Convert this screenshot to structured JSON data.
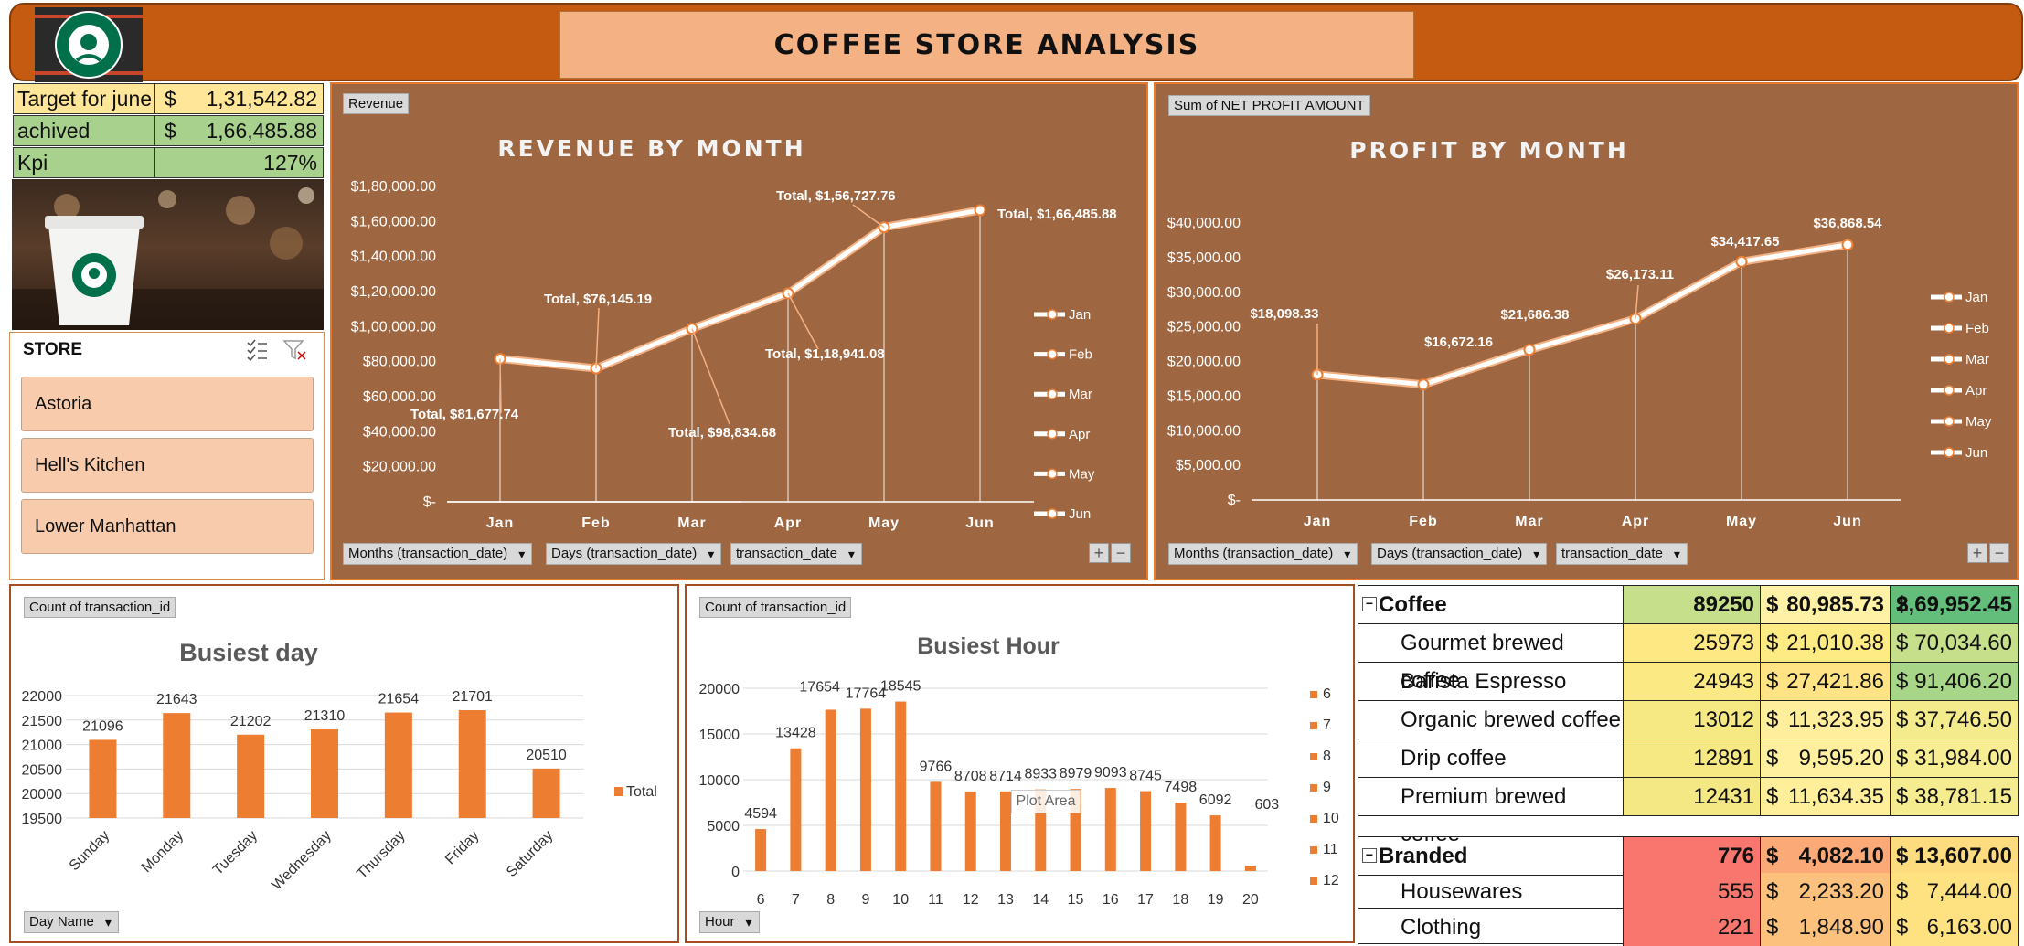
{
  "header": {
    "title": "COFFEE  STORE  ANALYSIS",
    "logo_text": "STARBUCKS COFFEE"
  },
  "kpi": {
    "target_label": "Target for june",
    "target_currency": "$",
    "target_value": "1,31,542.82",
    "achieved_label": "achived",
    "achieved_currency": "$",
    "achieved_value": "1,66,485.88",
    "kpi_label": "Kpi",
    "kpi_value": "127%"
  },
  "slicer": {
    "title": "STORE",
    "items": [
      "Astoria",
      "Hell's Kitchen",
      "Lower Manhattan"
    ]
  },
  "revenue_panel": {
    "field_button": "Revenue",
    "title": "REVENUE  BY  MONTH",
    "filters": [
      "Months (transaction_date)",
      "Days (transaction_date)",
      "transaction_date"
    ]
  },
  "profit_panel": {
    "field_button": "Sum of NET PROFIT AMOUNT",
    "title": "PROFIT  BY  MONTH",
    "filters": [
      "Months (transaction_date)",
      "Days (transaction_date)",
      "transaction_date"
    ]
  },
  "day_panel": {
    "field_button": "Count of transaction_id",
    "title": "Busiest day",
    "filter": "Day Name"
  },
  "hour_panel": {
    "field_button": "Count of transaction_id",
    "title": "Busiest Hour",
    "plot_area_tip": "Plot Area",
    "filter": "Hour"
  },
  "chart_data": [
    {
      "type": "line",
      "title": "REVENUE  BY  MONTH",
      "categories": [
        "Jan",
        "Feb",
        "Mar",
        "Apr",
        "May",
        "Jun"
      ],
      "values": [
        81677.74,
        76145.19,
        98834.68,
        118941.08,
        156727.76,
        166485.88
      ],
      "data_labels": [
        "Total,  $81,677.74",
        "Total,  $76,145.19",
        "Total,  $98,834.68",
        "Total,  $1,18,941.08",
        "Total,  $1,56,727.76",
        "Total,  $1,66,485.88"
      ],
      "y_ticks": [
        "$-",
        "$20,000.00",
        "$40,000.00",
        "$60,000.00",
        "$80,000.00",
        "$1,00,000.00",
        "$1,20,000.00",
        "$1,40,000.00",
        "$1,60,000.00",
        "$1,80,000.00"
      ],
      "ylim": [
        0,
        180000
      ],
      "legend": [
        "Jan",
        "Feb",
        "Mar",
        "Apr",
        "May",
        "Jun"
      ],
      "legend_position": "right",
      "color": "#ffffff"
    },
    {
      "type": "line",
      "title": "PROFIT  BY  MONTH",
      "categories": [
        "Jan",
        "Feb",
        "Mar",
        "Apr",
        "May",
        "Jun"
      ],
      "values": [
        18098.33,
        16672.16,
        21686.38,
        26173.11,
        34417.65,
        36868.54
      ],
      "data_labels": [
        "$18,098.33",
        "$16,672.16",
        "$21,686.38",
        "$26,173.11",
        "$34,417.65",
        "$36,868.54"
      ],
      "y_ticks": [
        "$-",
        "$5,000.00",
        "$10,000.00",
        "$15,000.00",
        "$20,000.00",
        "$25,000.00",
        "$30,000.00",
        "$35,000.00",
        "$40,000.00"
      ],
      "ylim": [
        0,
        40000
      ],
      "legend": [
        "Jan",
        "Feb",
        "Mar",
        "Apr",
        "May",
        "Jun"
      ],
      "legend_position": "right",
      "color": "#ffffff"
    },
    {
      "type": "bar",
      "title": "Busiest day",
      "categories": [
        "Sunday",
        "Monday",
        "Tuesday",
        "Wednesday",
        "Thursday",
        "Friday",
        "Saturday"
      ],
      "values": [
        21096,
        21643,
        21202,
        21310,
        21654,
        21701,
        20510
      ],
      "y_ticks": [
        "19500",
        "20000",
        "20500",
        "21000",
        "21500",
        "22000"
      ],
      "ylim": [
        19500,
        22000
      ],
      "legend": [
        "Total"
      ],
      "legend_position": "right",
      "color": "#ed7d31"
    },
    {
      "type": "bar",
      "title": "Busiest Hour",
      "categories": [
        "6",
        "7",
        "8",
        "9",
        "10",
        "11",
        "12",
        "13",
        "14",
        "15",
        "16",
        "17",
        "18",
        "19",
        "20"
      ],
      "values": [
        4594,
        13428,
        17654,
        17764,
        18545,
        9766,
        8708,
        8714,
        8933,
        8979,
        9093,
        8745,
        7498,
        6092,
        603
      ],
      "y_ticks": [
        "0",
        "5000",
        "10000",
        "15000",
        "20000"
      ],
      "ylim": [
        0,
        20000
      ],
      "legend": [
        "6",
        "7",
        "8",
        "9",
        "10",
        "11",
        "12"
      ],
      "legend_position": "right",
      "color": "#ed7d31"
    }
  ],
  "pivot": {
    "coffee": {
      "name": "Coffee",
      "count": "89250",
      "cur1": "$",
      "amount1": "80,985.73",
      "cur2": "$",
      "amount2": "2,69,952.45",
      "rows": [
        {
          "name": "Gourmet brewed coffee",
          "count": "25973",
          "cur1": "$",
          "amount1": "21,010.38",
          "cur2": "$",
          "amount2": "70,034.60"
        },
        {
          "name": "Barista Espresso",
          "count": "24943",
          "cur1": "$",
          "amount1": "27,421.86",
          "cur2": "$",
          "amount2": "91,406.20"
        },
        {
          "name": "Organic brewed coffee",
          "count": "13012",
          "cur1": "$",
          "amount1": "11,323.95",
          "cur2": "$",
          "amount2": "37,746.50"
        },
        {
          "name": "Drip coffee",
          "count": "12891",
          "cur1": "$",
          "amount1": "9,595.20",
          "cur2": "$",
          "amount2": "31,984.00"
        },
        {
          "name": "Premium brewed coffee",
          "count": "12431",
          "cur1": "$",
          "amount1": "11,634.35",
          "cur2": "$",
          "amount2": "38,781.15"
        }
      ]
    },
    "branded": {
      "name": "Branded",
      "count": "776",
      "cur1": "$",
      "amount1": "4,082.10",
      "cur2": "$",
      "amount2": "13,607.00",
      "rows": [
        {
          "name": "Housewares",
          "count": "555",
          "cur1": "$",
          "amount1": "2,233.20",
          "cur2": "$",
          "amount2": "7,444.00"
        },
        {
          "name": "Clothing",
          "count": "221",
          "cur1": "$",
          "amount1": "1,848.90",
          "cur2": "$",
          "amount2": "6,163.00"
        }
      ]
    }
  }
}
